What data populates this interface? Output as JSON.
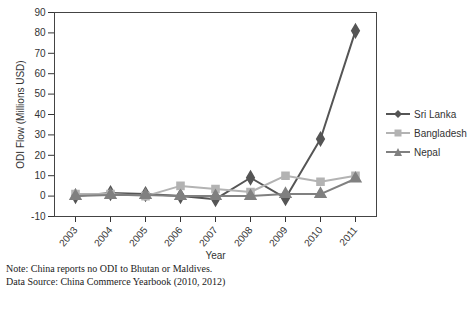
{
  "chart_data": {
    "type": "line",
    "x_label": "Year",
    "y_label": "ODI Flow (Millions USD)",
    "categories": [
      "2003",
      "2004",
      "2005",
      "2006",
      "2007",
      "2008",
      "2009",
      "2010",
      "2011"
    ],
    "series": [
      {
        "name": "Sri Lanka",
        "color": "#555555",
        "marker": "diamond",
        "values": [
          0,
          1.5,
          1,
          0,
          -1.5,
          9,
          -1,
          28,
          81
        ]
      },
      {
        "name": "Bangladesh",
        "color": "#b3b3b3",
        "marker": "square",
        "values": [
          1,
          1,
          0,
          5,
          3.5,
          2,
          10,
          7,
          10
        ]
      },
      {
        "name": "Nepal",
        "color": "#808080",
        "marker": "triangle",
        "values": [
          0,
          0.5,
          0.5,
          0,
          0,
          0,
          1,
          1,
          8.5
        ]
      }
    ],
    "ylim": [
      -10,
      90
    ],
    "yticks": [
      -10,
      0,
      10,
      20,
      30,
      40,
      50,
      60,
      70,
      80,
      90
    ],
    "grid": false,
    "legend": "right",
    "notes": [
      "Note: China reports no ODI to Bhutan or Maldives.",
      "Data Source: China Commerce Yearbook (2010, 2012)"
    ]
  }
}
